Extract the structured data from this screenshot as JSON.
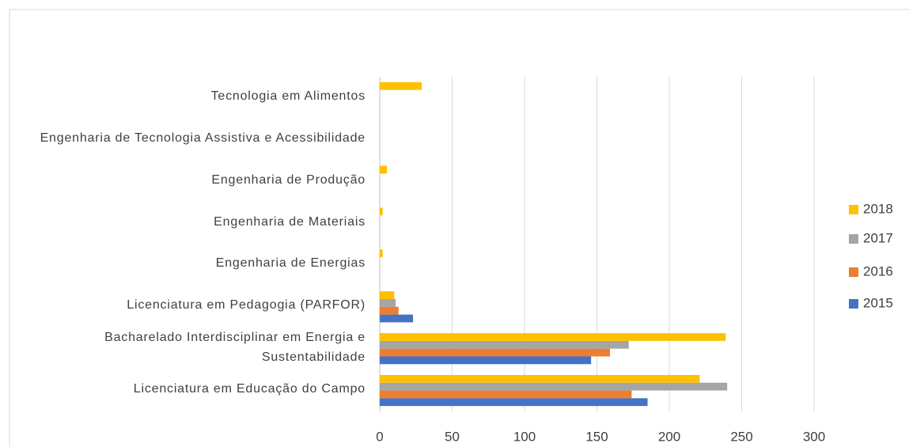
{
  "chart_data": {
    "type": "bar",
    "orientation": "horizontal",
    "categories": [
      "Licenciatura em Educação do Campo",
      "Bacharelado Interdisciplinar em Energia e Sustentabilidade",
      "Licenciatura em Pedagogia (PARFOR)",
      "Engenharia de Energias",
      "Engenharia de Materiais",
      "Engenharia de Produção",
      "Engenharia de Tecnologia Assistiva e Acessibilidade",
      "Tecnologia em Alimentos"
    ],
    "series": [
      {
        "name": "2015",
        "color": "#4472c4",
        "values": [
          185,
          146,
          23,
          0,
          0,
          0,
          0,
          0
        ]
      },
      {
        "name": "2016",
        "color": "#ed7d31",
        "values": [
          174,
          159,
          13,
          0,
          0,
          0,
          0,
          0
        ]
      },
      {
        "name": "2017",
        "color": "#a5a5a5",
        "values": [
          240,
          172,
          11,
          0,
          0,
          0,
          0,
          0
        ]
      },
      {
        "name": "2018",
        "color": "#ffc000",
        "values": [
          221,
          239,
          10,
          2,
          2,
          5,
          0,
          29
        ]
      }
    ],
    "xlim": [
      0,
      300
    ],
    "xticks": [
      0,
      50,
      100,
      150,
      200,
      250,
      300
    ],
    "grid": true,
    "legend": "right"
  }
}
